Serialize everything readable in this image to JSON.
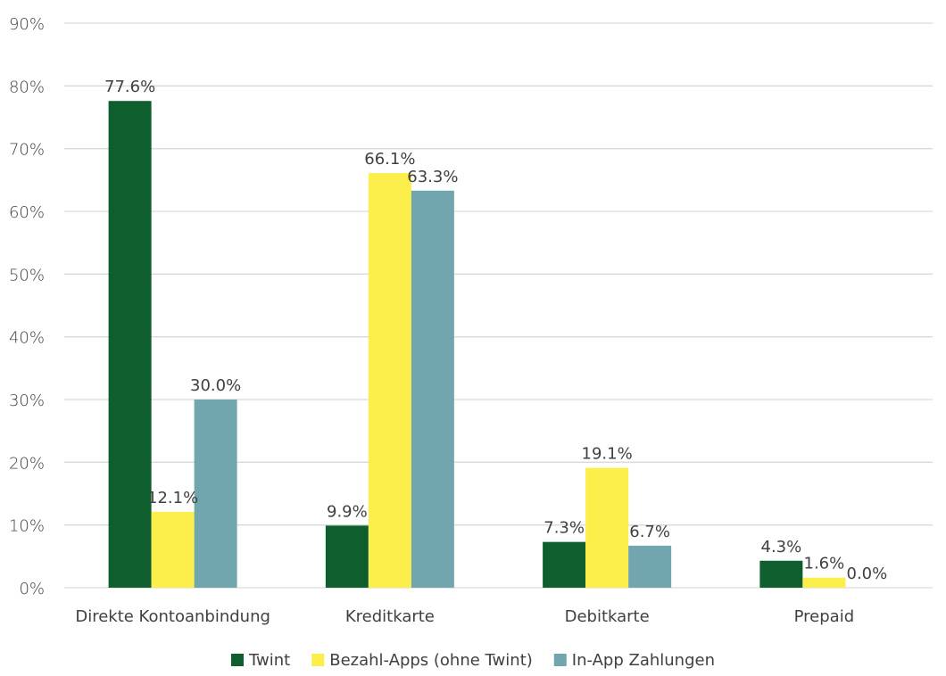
{
  "chart_data": {
    "type": "bar",
    "categories": [
      "Direkte Kontoanbindung",
      "Kreditkarte",
      "Debitkarte",
      "Prepaid"
    ],
    "series": [
      {
        "name": "Twint",
        "values": [
          77.6,
          9.9,
          7.3,
          4.3
        ],
        "labels": [
          "77.6%",
          "9.9%",
          "7.3%",
          "4.3%"
        ],
        "color": "#0f5f2e"
      },
      {
        "name": "Bezahl-Apps (ohne Twint)",
        "values": [
          12.1,
          66.1,
          19.1,
          1.6
        ],
        "labels": [
          "12.1%",
          "66.1%",
          "19.1%",
          "1.6%"
        ],
        "color": "#fdef4b"
      },
      {
        "name": "In-App Zahlungen",
        "values": [
          30.0,
          63.3,
          6.7,
          0.0
        ],
        "labels": [
          "30.0%",
          "63.3%",
          "6.7%",
          "0.0%"
        ],
        "color": "#72a6ae"
      }
    ],
    "ylim": [
      0,
      90
    ],
    "yticks": [
      "0%",
      "10%",
      "20%",
      "30%",
      "40%",
      "50%",
      "60%",
      "70%",
      "80%",
      "90%"
    ],
    "grid": true,
    "legend_position": "bottom",
    "gridline_color": "#d9d9d9"
  }
}
